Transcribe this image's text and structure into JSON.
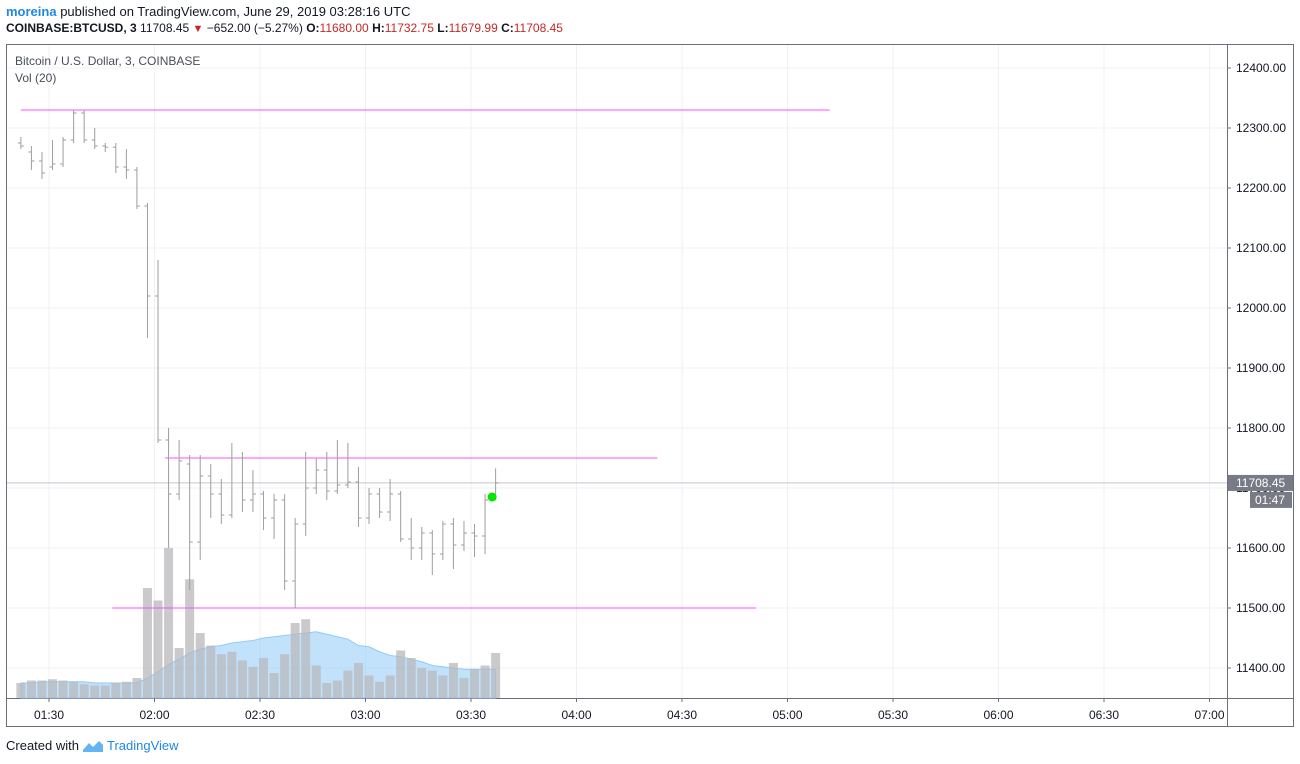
{
  "header": {
    "author": "moreina",
    "published_text": "published on TradingView.com, June 29, 2019 03:28:16 UTC",
    "symbol": "COINBASE:BTCUSD, 3",
    "last": "11708.45",
    "change_arrow": "▼",
    "change": "−652.00 (−5.27%)",
    "o_label": "O:",
    "o_value": "11680.00",
    "h_label": "H:",
    "h_value": "11732.75",
    "l_label": "L:",
    "l_value": "11679.99",
    "c_label": "C:",
    "c_value": "11708.45"
  },
  "legend": {
    "series_title": "Bitcoin / U.S. Dollar, 3, COINBASE",
    "volume_title": "Vol (20)"
  },
  "footer": {
    "created_with": "Created with",
    "brand": "TradingView"
  },
  "colors": {
    "bar": "#9e9e9e",
    "volume_bar": "#b8b8bc",
    "volume_ma": "#90caf9",
    "hline": "#ff4dff",
    "dot": "#00e600",
    "price_label_bg": "#787b86"
  },
  "chart_data": {
    "type": "ohlc",
    "interval_minutes": 3,
    "x_ticks": [
      "01:30",
      "02:00",
      "02:30",
      "03:00",
      "03:30",
      "04:00",
      "04:30",
      "05:00",
      "05:30",
      "06:00",
      "06:30",
      "07:00"
    ],
    "y_ticks": [
      "12400.00",
      "12300.00",
      "12200.00",
      "12100.00",
      "12000.00",
      "11900.00",
      "11800.00",
      "11700.00",
      "11600.00",
      "11500.00",
      "11400.00"
    ],
    "ylim": [
      11350,
      12445
    ],
    "last_price_label": "11708.45",
    "countdown_label": "01:47",
    "bars": [
      {
        "t": "01:22",
        "o": 12275,
        "h": 12285,
        "l": 12265,
        "c": 12270,
        "v": 0.12
      },
      {
        "t": "01:25",
        "o": 12260,
        "h": 12270,
        "l": 12230,
        "c": 12245,
        "v": 0.14
      },
      {
        "t": "01:28",
        "o": 12245,
        "h": 12260,
        "l": 12215,
        "c": 12225,
        "v": 0.14
      },
      {
        "t": "01:31",
        "o": 12235,
        "h": 12280,
        "l": 12230,
        "c": 12240,
        "v": 0.15
      },
      {
        "t": "01:34",
        "o": 12240,
        "h": 12285,
        "l": 12235,
        "c": 12280,
        "v": 0.14
      },
      {
        "t": "01:37",
        "o": 12280,
        "h": 12330,
        "l": 12275,
        "c": 12325,
        "v": 0.13
      },
      {
        "t": "01:40",
        "o": 12325,
        "h": 12330,
        "l": 12275,
        "c": 12280,
        "v": 0.11
      },
      {
        "t": "01:43",
        "o": 12280,
        "h": 12300,
        "l": 12265,
        "c": 12270,
        "v": 0.1
      },
      {
        "t": "01:46",
        "o": 12270,
        "h": 12275,
        "l": 12260,
        "c": 12268,
        "v": 0.1
      },
      {
        "t": "01:49",
        "o": 12268,
        "h": 12275,
        "l": 12225,
        "c": 12235,
        "v": 0.12
      },
      {
        "t": "01:52",
        "o": 12235,
        "h": 12265,
        "l": 12215,
        "c": 12230,
        "v": 0.13
      },
      {
        "t": "01:55",
        "o": 12230,
        "h": 12235,
        "l": 12165,
        "c": 12170,
        "v": 0.16
      },
      {
        "t": "01:58",
        "o": 12170,
        "h": 12175,
        "l": 11950,
        "c": 12020,
        "v": 0.88
      },
      {
        "t": "02:01",
        "o": 12020,
        "h": 12080,
        "l": 11775,
        "c": 11780,
        "v": 0.78
      },
      {
        "t": "02:04",
        "o": 11780,
        "h": 11800,
        "l": 11600,
        "c": 11690,
        "v": 1.2
      },
      {
        "t": "02:07",
        "o": 11690,
        "h": 11780,
        "l": 11680,
        "c": 11745,
        "v": 0.4
      },
      {
        "t": "02:10",
        "o": 11740,
        "h": 11755,
        "l": 11530,
        "c": 11610,
        "v": 0.95
      },
      {
        "t": "02:13",
        "o": 11610,
        "h": 11755,
        "l": 11580,
        "c": 11720,
        "v": 0.52
      },
      {
        "t": "02:16",
        "o": 11720,
        "h": 11740,
        "l": 11650,
        "c": 11690,
        "v": 0.42
      },
      {
        "t": "02:19",
        "o": 11690,
        "h": 11715,
        "l": 11640,
        "c": 11655,
        "v": 0.35
      },
      {
        "t": "02:22",
        "o": 11655,
        "h": 11775,
        "l": 11650,
        "c": 11750,
        "v": 0.37
      },
      {
        "t": "02:25",
        "o": 11750,
        "h": 11760,
        "l": 11660,
        "c": 11680,
        "v": 0.3
      },
      {
        "t": "02:28",
        "o": 11680,
        "h": 11730,
        "l": 11660,
        "c": 11690,
        "v": 0.25
      },
      {
        "t": "02:31",
        "o": 11690,
        "h": 11695,
        "l": 11630,
        "c": 11650,
        "v": 0.32
      },
      {
        "t": "02:34",
        "o": 11650,
        "h": 11690,
        "l": 11615,
        "c": 11680,
        "v": 0.2
      },
      {
        "t": "02:37",
        "o": 11680,
        "h": 11690,
        "l": 11530,
        "c": 11545,
        "v": 0.35
      },
      {
        "t": "02:40",
        "o": 11545,
        "h": 11650,
        "l": 11500,
        "c": 11640,
        "v": 0.6
      },
      {
        "t": "02:43",
        "o": 11640,
        "h": 11760,
        "l": 11620,
        "c": 11700,
        "v": 0.63
      },
      {
        "t": "02:46",
        "o": 11700,
        "h": 11750,
        "l": 11690,
        "c": 11730,
        "v": 0.26
      },
      {
        "t": "02:49",
        "o": 11730,
        "h": 11760,
        "l": 11680,
        "c": 11695,
        "v": 0.12
      },
      {
        "t": "02:52",
        "o": 11695,
        "h": 11780,
        "l": 11690,
        "c": 11705,
        "v": 0.14
      },
      {
        "t": "02:55",
        "o": 11705,
        "h": 11775,
        "l": 11700,
        "c": 11710,
        "v": 0.22
      },
      {
        "t": "02:58",
        "o": 11710,
        "h": 11735,
        "l": 11635,
        "c": 11650,
        "v": 0.28
      },
      {
        "t": "03:01",
        "o": 11650,
        "h": 11700,
        "l": 11640,
        "c": 11690,
        "v": 0.18
      },
      {
        "t": "03:04",
        "o": 11690,
        "h": 11700,
        "l": 11650,
        "c": 11660,
        "v": 0.13
      },
      {
        "t": "03:07",
        "o": 11660,
        "h": 11715,
        "l": 11645,
        "c": 11690,
        "v": 0.18
      },
      {
        "t": "03:10",
        "o": 11690,
        "h": 11695,
        "l": 11610,
        "c": 11615,
        "v": 0.38
      },
      {
        "t": "03:13",
        "o": 11615,
        "h": 11650,
        "l": 11580,
        "c": 11600,
        "v": 0.32
      },
      {
        "t": "03:16",
        "o": 11600,
        "h": 11635,
        "l": 11580,
        "c": 11625,
        "v": 0.24
      },
      {
        "t": "03:19",
        "o": 11625,
        "h": 11630,
        "l": 11555,
        "c": 11590,
        "v": 0.22
      },
      {
        "t": "03:22",
        "o": 11590,
        "h": 11645,
        "l": 11580,
        "c": 11640,
        "v": 0.18
      },
      {
        "t": "03:25",
        "o": 11640,
        "h": 11650,
        "l": 11565,
        "c": 11605,
        "v": 0.28
      },
      {
        "t": "03:28",
        "o": 11605,
        "h": 11645,
        "l": 11595,
        "c": 11625,
        "v": 0.16
      },
      {
        "t": "03:31",
        "o": 11625,
        "h": 11640,
        "l": 11585,
        "c": 11620,
        "v": 0.23
      },
      {
        "t": "03:34",
        "o": 11620,
        "h": 11690,
        "l": 11590,
        "c": 11680,
        "v": 0.26
      },
      {
        "t": "03:37",
        "o": 11680,
        "h": 11732.75,
        "l": 11679.99,
        "c": 11708.45,
        "v": 0.36
      }
    ],
    "volume_ma": [
      0.12,
      0.12,
      0.13,
      0.13,
      0.13,
      0.13,
      0.13,
      0.12,
      0.12,
      0.12,
      0.12,
      0.12,
      0.16,
      0.21,
      0.27,
      0.31,
      0.36,
      0.39,
      0.41,
      0.42,
      0.44,
      0.45,
      0.46,
      0.48,
      0.49,
      0.5,
      0.51,
      0.52,
      0.53,
      0.51,
      0.49,
      0.47,
      0.42,
      0.41,
      0.37,
      0.34,
      0.33,
      0.31,
      0.29,
      0.26,
      0.25,
      0.24,
      0.23,
      0.23,
      0.23,
      0.23
    ],
    "horizontal_lines": [
      {
        "price": 12330,
        "from": "01:22",
        "to": "05:12"
      },
      {
        "price": 11750,
        "from": "02:03",
        "to": "04:23"
      },
      {
        "price": 11500,
        "from": "01:48",
        "to": "04:51"
      }
    ],
    "marker": {
      "time": "03:36",
      "price": 11685
    }
  }
}
